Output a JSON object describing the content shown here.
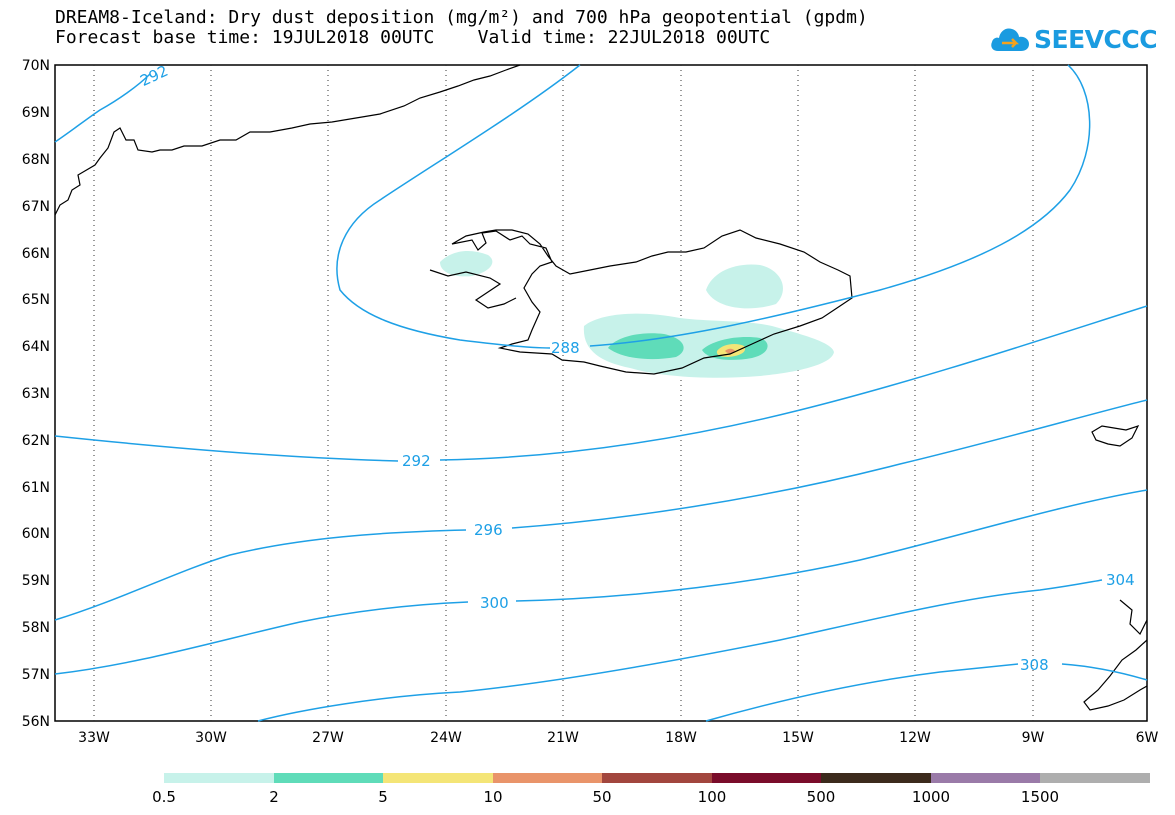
{
  "header": {
    "title_line1": "DREAM8-Iceland: Dry dust deposition (mg/m²) and 700 hPa geopotential (gpdm)",
    "title_line2": "Forecast base time: 19JUL2018 00UTC    Valid time: 22JUL2018 00UTC"
  },
  "logo": {
    "text": "SEEVCCC",
    "icon": "cloud-icon"
  },
  "map": {
    "lat_labels": [
      "70N",
      "69N",
      "68N",
      "67N",
      "66N",
      "65N",
      "64N",
      "63N",
      "62N",
      "61N",
      "60N",
      "59N",
      "58N",
      "57N",
      "56N"
    ],
    "lon_labels": [
      "33W",
      "30W",
      "27W",
      "24W",
      "21W",
      "18W",
      "15W",
      "12W",
      "9W",
      "6W"
    ],
    "contour_labels": [
      "292",
      "288",
      "292",
      "296",
      "300",
      "304",
      "308"
    ],
    "contour_color": "#1ea0e6"
  },
  "legend": {
    "colors": [
      "#c7f2ea",
      "#5fdcb9",
      "#f4e577",
      "#e9946a",
      "#a2463e",
      "#7a0c2a",
      "#3c2a1c",
      "#9a7aa8",
      "#aeaeae"
    ],
    "labels": [
      "0.5",
      "2",
      "5",
      "10",
      "50",
      "100",
      "500",
      "1000",
      "1500"
    ]
  }
}
